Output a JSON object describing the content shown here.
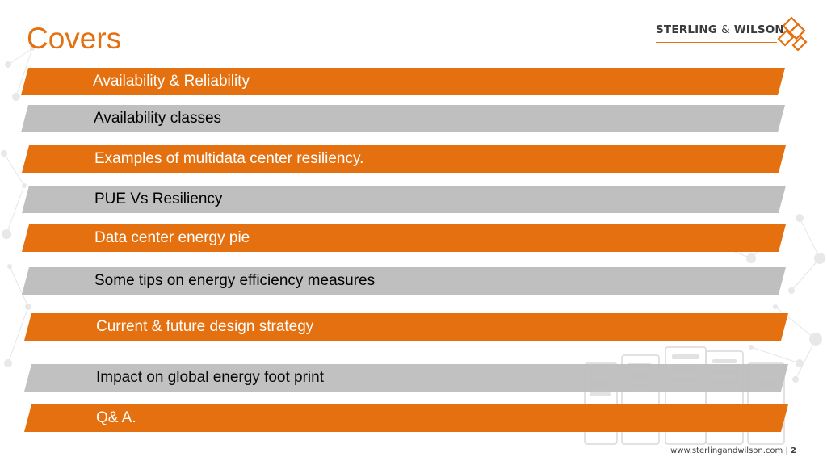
{
  "title": "Covers",
  "logo": {
    "text_left": "STERLING",
    "text_amp": "&",
    "text_right": "WILSON"
  },
  "bands": [
    {
      "label": "Availability & Reliability",
      "style": "orange"
    },
    {
      "label": "Availability classes",
      "style": "gray"
    },
    {
      "label": "Examples of multidata center resiliency.",
      "style": "orange"
    },
    {
      "label": "PUE Vs Resiliency",
      "style": "gray"
    },
    {
      "label": "Data center energy pie",
      "style": "orange"
    },
    {
      "label": "Some tips on energy efficiency measures",
      "style": "gray"
    },
    {
      "label": "Current & future design strategy",
      "style": "orange"
    },
    {
      "label": "Impact on global energy foot print",
      "style": "gray"
    },
    {
      "label": "Q& A.",
      "style": "orange"
    }
  ],
  "footer": {
    "url": "www.sterlingandwilson.com",
    "separator": "|",
    "page": "2"
  },
  "colors": {
    "accent": "#E5700F",
    "band_gray": "#BFBFBF"
  }
}
